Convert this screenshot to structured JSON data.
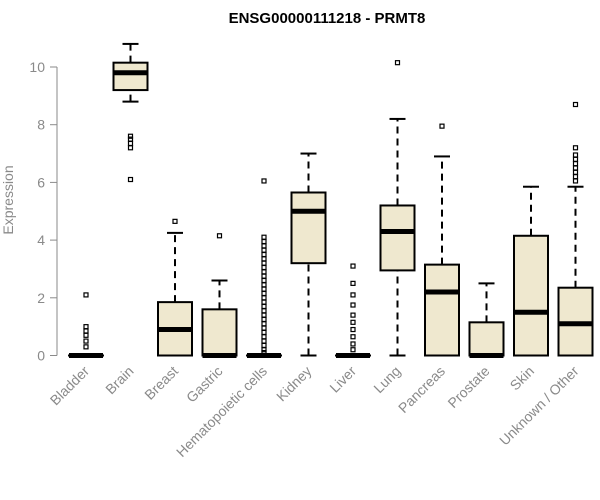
{
  "chart_data": {
    "type": "box",
    "title": "ENSG00000111218 - PRMT8",
    "ylabel": "Expression",
    "xlabel": "",
    "ylim": [
      0,
      10.8
    ],
    "yticks": [
      0,
      2,
      4,
      6,
      8,
      10
    ],
    "grid": false,
    "colors": {
      "box_fill": "#efe8cf",
      "box_stroke": "#000000",
      "axis": "#8a8a8a",
      "text": "#8a8a8a"
    },
    "categories": [
      "Bladder",
      "Brain",
      "Breast",
      "Gastric",
      "Hematopoietic cells",
      "Kidney",
      "Liver",
      "Lung",
      "Pancreas",
      "Prostate",
      "Skin",
      "Unknown / Other"
    ],
    "boxes": [
      {
        "q1": 0,
        "median": 0,
        "q3": 0,
        "whisker_low": 0,
        "whisker_high": 0,
        "outliers": [
          0.3,
          0.5,
          0.7,
          0.85,
          1.0,
          2.1
        ]
      },
      {
        "q1": 9.2,
        "median": 9.8,
        "q3": 10.15,
        "whisker_low": 8.8,
        "whisker_high": 10.8,
        "outliers": [
          7.2,
          7.35,
          7.5,
          7.6,
          6.1
        ]
      },
      {
        "q1": 0,
        "median": 0.9,
        "q3": 1.85,
        "whisker_low": 0,
        "whisker_high": 4.25,
        "outliers": [
          4.65
        ]
      },
      {
        "q1": 0,
        "median": 0,
        "q3": 1.6,
        "whisker_low": 0,
        "whisker_high": 2.6,
        "outliers": [
          4.15
        ]
      },
      {
        "q1": 0,
        "median": 0,
        "q3": 0,
        "whisker_low": 0,
        "whisker_high": 0,
        "outliers": [
          0.1,
          0.2,
          0.35,
          0.5,
          0.65,
          0.8,
          0.95,
          1.1,
          1.25,
          1.4,
          1.55,
          1.7,
          1.85,
          2.0,
          2.15,
          2.3,
          2.45,
          2.6,
          2.75,
          2.9,
          3.05,
          3.2,
          3.35,
          3.5,
          3.65,
          3.8,
          3.95,
          4.1,
          6.05
        ]
      },
      {
        "q1": 3.2,
        "median": 5.0,
        "q3": 5.65,
        "whisker_low": 0,
        "whisker_high": 7.0,
        "outliers": []
      },
      {
        "q1": 0,
        "median": 0,
        "q3": 0,
        "whisker_low": 0,
        "whisker_high": 0,
        "outliers": [
          0.2,
          0.4,
          0.65,
          0.9,
          1.15,
          1.4,
          1.75,
          2.1,
          2.5,
          3.1
        ]
      },
      {
        "q1": 2.95,
        "median": 4.3,
        "q3": 5.2,
        "whisker_low": 0,
        "whisker_high": 8.2,
        "outliers": [
          10.15
        ]
      },
      {
        "q1": 0,
        "median": 2.2,
        "q3": 3.15,
        "whisker_low": 0,
        "whisker_high": 6.9,
        "outliers": [
          7.95
        ]
      },
      {
        "q1": 0,
        "median": 0,
        "q3": 1.15,
        "whisker_low": 0,
        "whisker_high": 2.5,
        "outliers": []
      },
      {
        "q1": 0,
        "median": 1.5,
        "q3": 4.15,
        "whisker_low": 0,
        "whisker_high": 5.85,
        "outliers": []
      },
      {
        "q1": 0,
        "median": 1.1,
        "q3": 2.35,
        "whisker_low": 0,
        "whisker_high": 5.85,
        "outliers": [
          6.05,
          6.2,
          6.35,
          6.5,
          6.65,
          6.8,
          6.95,
          7.2,
          8.7
        ]
      }
    ]
  }
}
